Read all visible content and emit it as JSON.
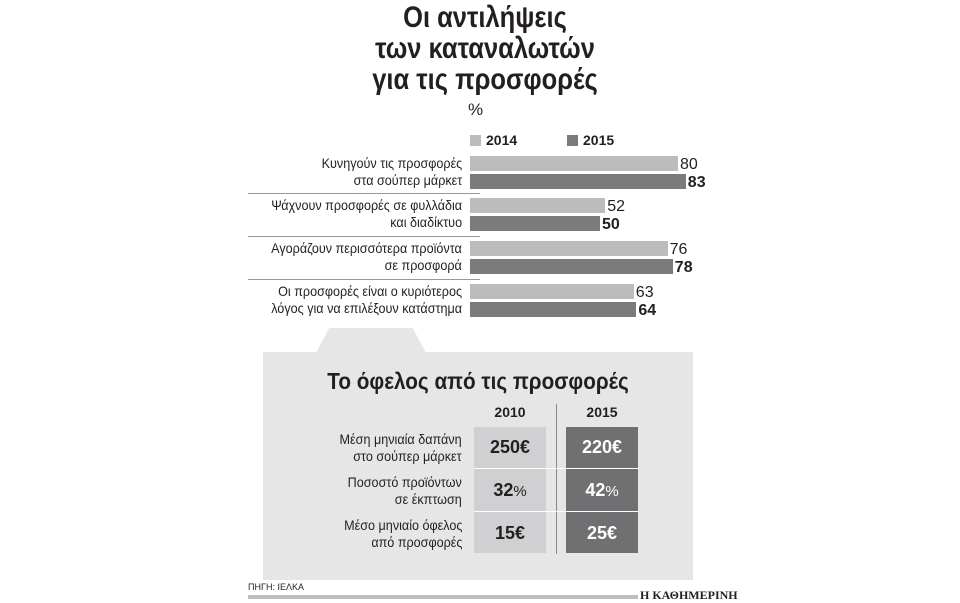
{
  "title_lines": [
    "Οι αντιλήψεις",
    "των καταναλωτών",
    "για τις προσφορές"
  ],
  "chart_data": {
    "type": "bar",
    "orientation": "horizontal",
    "unit": "%",
    "categories": [
      [
        "Κυνηγούν τις προσφορές",
        "στα σούπερ μάρκετ"
      ],
      [
        "Ψάχνουν προσφορές σε φυλλάδια",
        "και διαδίκτυο"
      ],
      [
        "Αγοράζουν περισσότερα προϊόντα",
        "σε προσφορά"
      ],
      [
        "Οι προσφορές είναι ο κυριότερος",
        "λόγος για να επιλέξουν κατάστημα"
      ]
    ],
    "series": [
      {
        "name": "2014",
        "values": [
          80,
          52,
          76,
          63
        ],
        "color": "#bcbcbe"
      },
      {
        "name": "2015",
        "values": [
          83,
          50,
          78,
          64
        ],
        "color": "#7b7b7e"
      }
    ],
    "legend": "top",
    "grid": false
  },
  "table": {
    "title": "Το όφελος από τις προσφορές",
    "columns": [
      "2010",
      "2015"
    ],
    "col_colors": [
      "#d0d0d2",
      "#707073"
    ],
    "rows": [
      {
        "label": [
          "Μέση μηνιαία δαπάνη",
          "στο σούπερ μάρκετ"
        ],
        "v2010": "250",
        "v2015": "220",
        "unit": "€"
      },
      {
        "label": [
          "Ποσοστό προϊόντων",
          "σε έκπτωση"
        ],
        "v2010": "32",
        "v2015": "42",
        "unit": "%"
      },
      {
        "label": [
          "Μέσο μηνιαίο όφελος",
          "από προσφορές"
        ],
        "v2010": "15",
        "v2015": "25",
        "unit": "€"
      }
    ]
  },
  "source": "ΠΗΓΗ: ΙΕΛΚΑ",
  "brand": "Η ΚΑΘΗΜΕΡΙΝΗ"
}
